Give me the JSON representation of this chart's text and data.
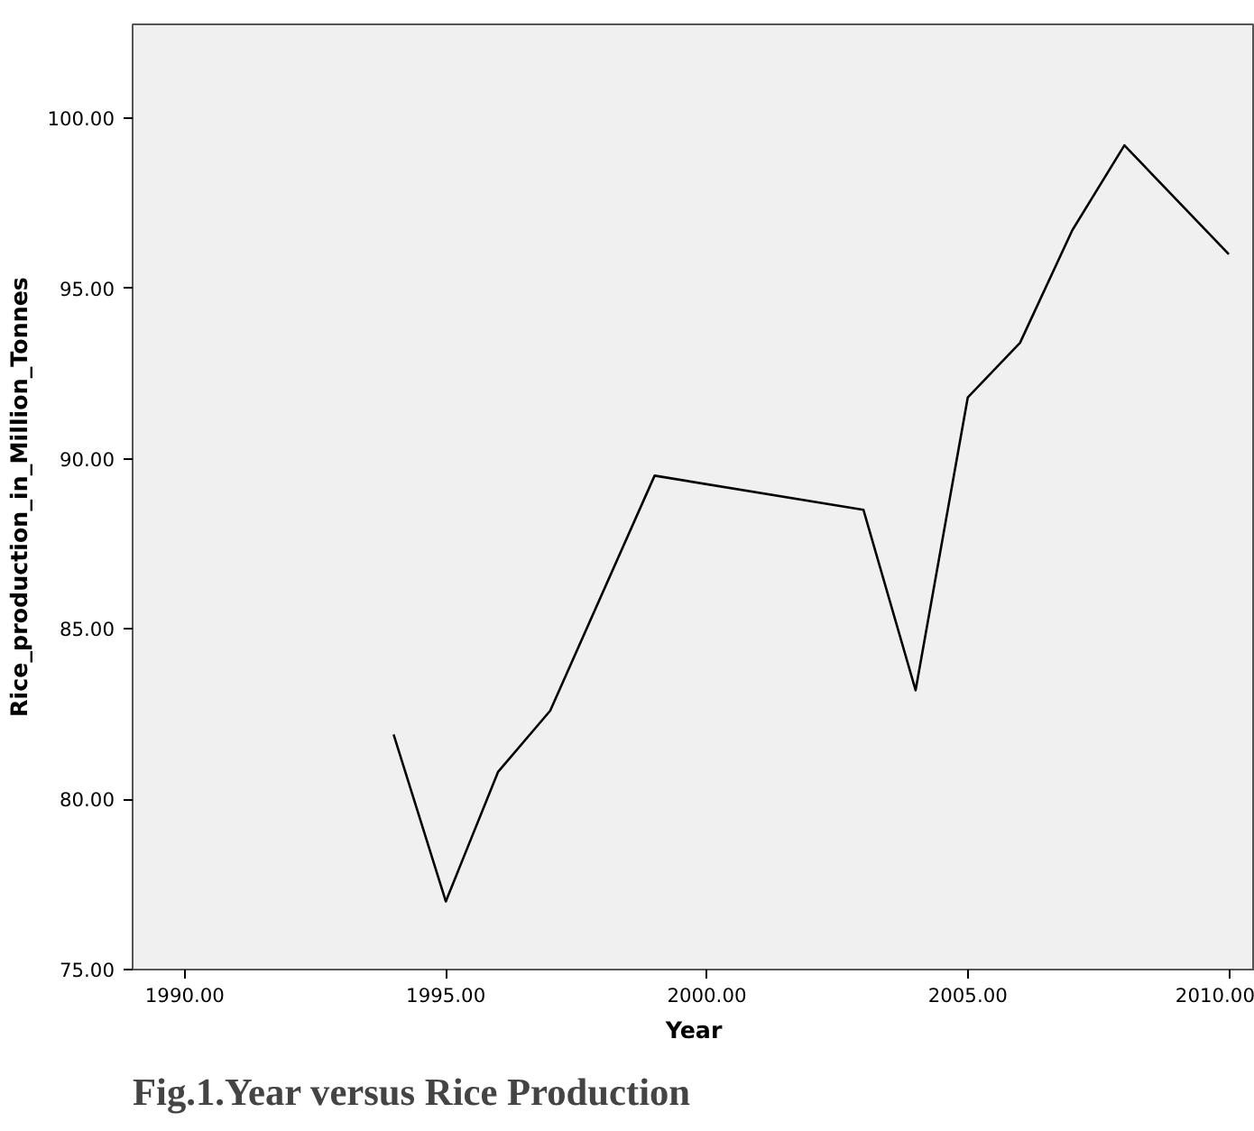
{
  "chart_data": {
    "type": "line",
    "xlabel": "Year",
    "ylabel": "Rice_production_in_Million_Tonnes",
    "x": [
      1994,
      1995,
      1996,
      1997,
      1999,
      2003,
      2004,
      2005,
      2006,
      2007,
      2008,
      2010
    ],
    "series": [
      {
        "color": "#000000",
        "values": [
          81.9,
          77.0,
          80.8,
          82.6,
          89.5,
          88.5,
          83.2,
          91.8,
          93.4,
          96.7,
          99.2,
          96.0
        ]
      }
    ],
    "xlim": [
      1989,
      2010.5
    ],
    "ylim": [
      75,
      102.75
    ],
    "xticks": [
      {
        "value": 1990,
        "label": "1990.00"
      },
      {
        "value": 1995,
        "label": "1995.00"
      },
      {
        "value": 2000,
        "label": "2000.00"
      },
      {
        "value": 2005,
        "label": "2005.00"
      },
      {
        "value": 2010,
        "label": "2010.00"
      }
    ],
    "yticks": [
      {
        "value": 75,
        "label": "75.00"
      },
      {
        "value": 80,
        "label": "80.00"
      },
      {
        "value": 85,
        "label": "85.00"
      },
      {
        "value": 90,
        "label": "90.00"
      },
      {
        "value": 95,
        "label": "95.00"
      },
      {
        "value": 100,
        "label": "100.00"
      }
    ],
    "grid": false,
    "marker": "none",
    "line_style": "solid",
    "annotations": [
      "Fig.1.Year versus Rice Production"
    ]
  }
}
